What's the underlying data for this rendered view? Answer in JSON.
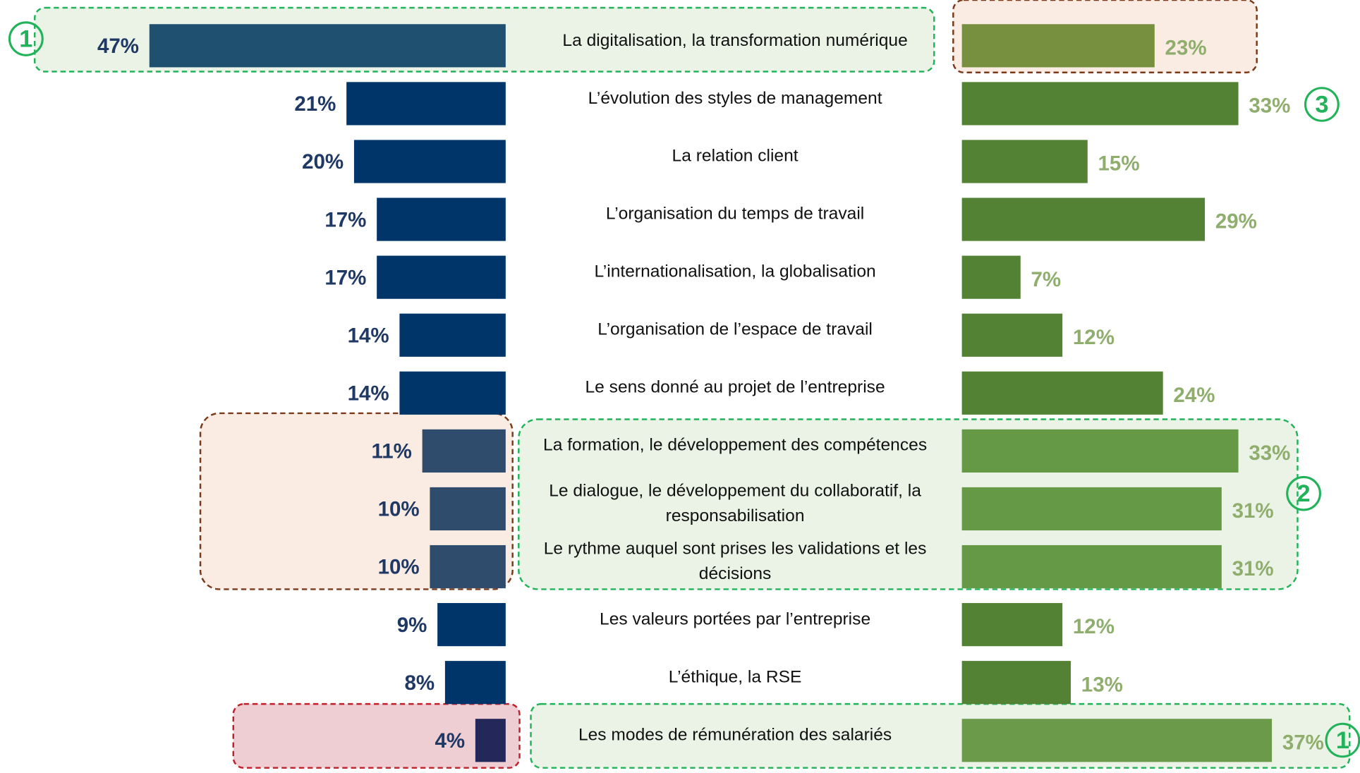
{
  "chart_data": {
    "type": "butterfly-bar",
    "categories": [
      "La digitalisation, la transformation numérique",
      "L’évolution des styles de management",
      "La relation client",
      "L’organisation du temps de travail",
      "L’internationalisation, la globalisation",
      "L’organisation de l’espace de travail",
      "Le sens donné au projet de l’entreprise",
      "La formation, le développement des compétences",
      "Le dialogue, le développement du collaboratif, la responsabilisation",
      "Le rythme auquel sont prises les validations et les décisions",
      "Les valeurs portées par l’entreprise",
      "L’éthique, la RSE",
      "Les modes de rémunération des salariés"
    ],
    "series": [
      {
        "side": "left",
        "values": [
          47,
          21,
          20,
          17,
          17,
          14,
          14,
          11,
          10,
          10,
          9,
          8,
          4
        ],
        "value_labels": [
          "47%",
          "21%",
          "20%",
          "17%",
          "17%",
          "14%",
          "14%",
          "11%",
          "10%",
          "10%",
          "9%",
          "8%",
          "4%"
        ],
        "colors": [
          "#1f5070",
          "#00356a",
          "#00356a",
          "#00356a",
          "#00356a",
          "#00356a",
          "#00356a",
          "#2f4c6c",
          "#2f4c6c",
          "#2f4c6c",
          "#00356a",
          "#00356a",
          "#232858"
        ],
        "label_color": "#1f3864"
      },
      {
        "side": "right",
        "values": [
          23,
          33,
          15,
          29,
          7,
          12,
          24,
          33,
          31,
          31,
          12,
          13,
          37
        ],
        "value_labels": [
          "23%",
          "33%",
          "15%",
          "29%",
          "7%",
          "12%",
          "24%",
          "33%",
          "31%",
          "31%",
          "12%",
          "13%",
          "37%"
        ],
        "colors": [
          "#76903f",
          "#548235",
          "#548235",
          "#548235",
          "#548235",
          "#548235",
          "#548235",
          "#659946",
          "#659946",
          "#659946",
          "#548235",
          "#548235",
          "#6a9a4a"
        ],
        "label_color": "#8fae6e"
      }
    ],
    "annotations": [
      "1",
      "3",
      "2",
      "1"
    ]
  }
}
